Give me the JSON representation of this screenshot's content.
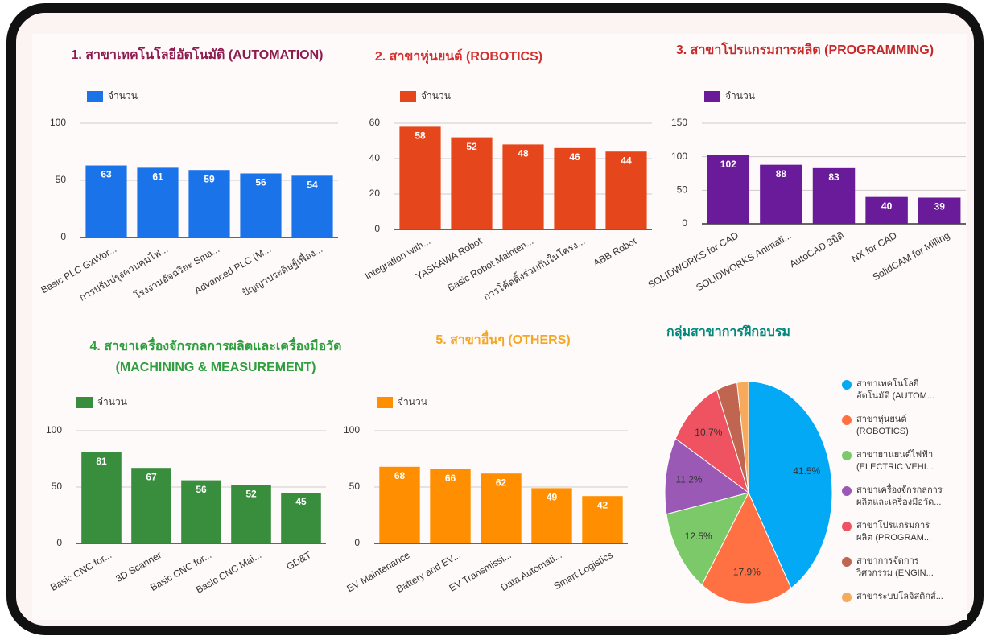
{
  "chart_data": [
    {
      "type": "bar",
      "title": "1. สาขาเทคโนโลยีอัตโนมัติ (AUTOMATION)",
      "title_color": "#8e1b4e",
      "categories": [
        "Basic PLC GxWor...",
        "การปรับปรุงควบคุมไฟ...",
        "โรงงานอัจฉริยะ Sma...",
        "Advanced PLC (M...",
        "ปัญญาประดิษฐ์เพื่อง..."
      ],
      "series": [
        {
          "name": "จำนวน",
          "color": "#1a73e8",
          "values": [
            63,
            61,
            59,
            56,
            54
          ]
        }
      ],
      "ylim": [
        0,
        100
      ],
      "yticks": [
        0,
        50,
        100
      ],
      "grid": true,
      "legend": "top"
    },
    {
      "type": "bar",
      "title": "2. สาขาหุ่นยนต์ (ROBOTICS)",
      "title_color": "#d32f2f",
      "categories": [
        "Integration with...",
        "YASKAWA Robot",
        "Basic Robot Mainten...",
        "การโค้ดดิ้งร่วมกับในโครง...",
        "ABB Robot"
      ],
      "series": [
        {
          "name": "จำนวน",
          "color": "#e6461c",
          "values": [
            58,
            52,
            48,
            46,
            44
          ]
        }
      ],
      "ylim": [
        0,
        60
      ],
      "yticks": [
        0,
        20,
        40,
        60
      ],
      "grid": true,
      "legend": "top"
    },
    {
      "type": "bar",
      "title": "3. สาขาโปรแกรมการผลิต (PROGRAMMING)",
      "title_color": "#c62828",
      "categories": [
        "SOLIDWORKS for CAD",
        "SOLIDWORKS Animati...",
        "AutoCAD 3มิติ",
        "NX for CAD",
        "SolidCAM for Milling"
      ],
      "series": [
        {
          "name": "จำนวน",
          "color": "#6a1b9a",
          "values": [
            102,
            88,
            83,
            40,
            39
          ]
        }
      ],
      "ylim": [
        0,
        150
      ],
      "yticks": [
        0,
        50,
        100,
        150
      ],
      "grid": true,
      "legend": "top"
    },
    {
      "type": "bar",
      "title": "4. สาขาเครื่องจักรกลการผลิตและเครื่องมือวัด (MACHINING & MEASUREMENT)",
      "title_color": "#2e9e3e",
      "categories": [
        "Basic CNC for...",
        "3D Scanner",
        "Basic CNC for...",
        "Basic CNC Mai...",
        "GD&T"
      ],
      "series": [
        {
          "name": "จำนวน",
          "color": "#388e3c",
          "values": [
            81,
            67,
            56,
            52,
            45
          ]
        }
      ],
      "ylim": [
        0,
        100
      ],
      "yticks": [
        0,
        50,
        100
      ],
      "grid": true,
      "legend": "top"
    },
    {
      "type": "bar",
      "title": "5. สาขาอื่นๆ (OTHERS)",
      "title_color": "#f5a623",
      "categories": [
        "EV Maintenance",
        "Battery and EV...",
        "EV Transmissi...",
        "Data Automati...",
        "Smart Logistics"
      ],
      "series": [
        {
          "name": "จำนวน",
          "color": "#ff8f00",
          "values": [
            68,
            66,
            62,
            49,
            42
          ]
        }
      ],
      "ylim": [
        0,
        100
      ],
      "yticks": [
        0,
        50,
        100
      ],
      "grid": true,
      "legend": "top"
    },
    {
      "type": "pie",
      "title": "กลุ่มสาขาการฝึกอบรม",
      "title_color": "#00897b",
      "categories": [
        "สาขาเทคโนโลยี อัตโนมัติ (AUTOM...",
        "สาขาหุ่นยนต์ (ROBOTICS)",
        "สาขายานยนต์ไฟฟ้า (ELECTRIC VEHI...",
        "สาขาเครื่องจักรกลการ ผลิตและเครื่องมือวัด...",
        "สาขาโปรแกรมการ ผลิต (PROGRAM...",
        "สาขาการจัดการ วิศวกรรม (ENGIN...",
        "สาขาระบบโลจิสติกส์..."
      ],
      "values": [
        41.5,
        17.9,
        12.5,
        11.2,
        10.7,
        4.0,
        2.2
      ],
      "value_labels": [
        "41.5%",
        "17.9%",
        "12.5%",
        "11.2%",
        "10.7%",
        null,
        null
      ],
      "colors": [
        "#03a9f4",
        "#ff7043",
        "#7cc96a",
        "#9b59b6",
        "#ef5361",
        "#c0654f",
        "#f7a95c"
      ],
      "legend": "right"
    }
  ]
}
